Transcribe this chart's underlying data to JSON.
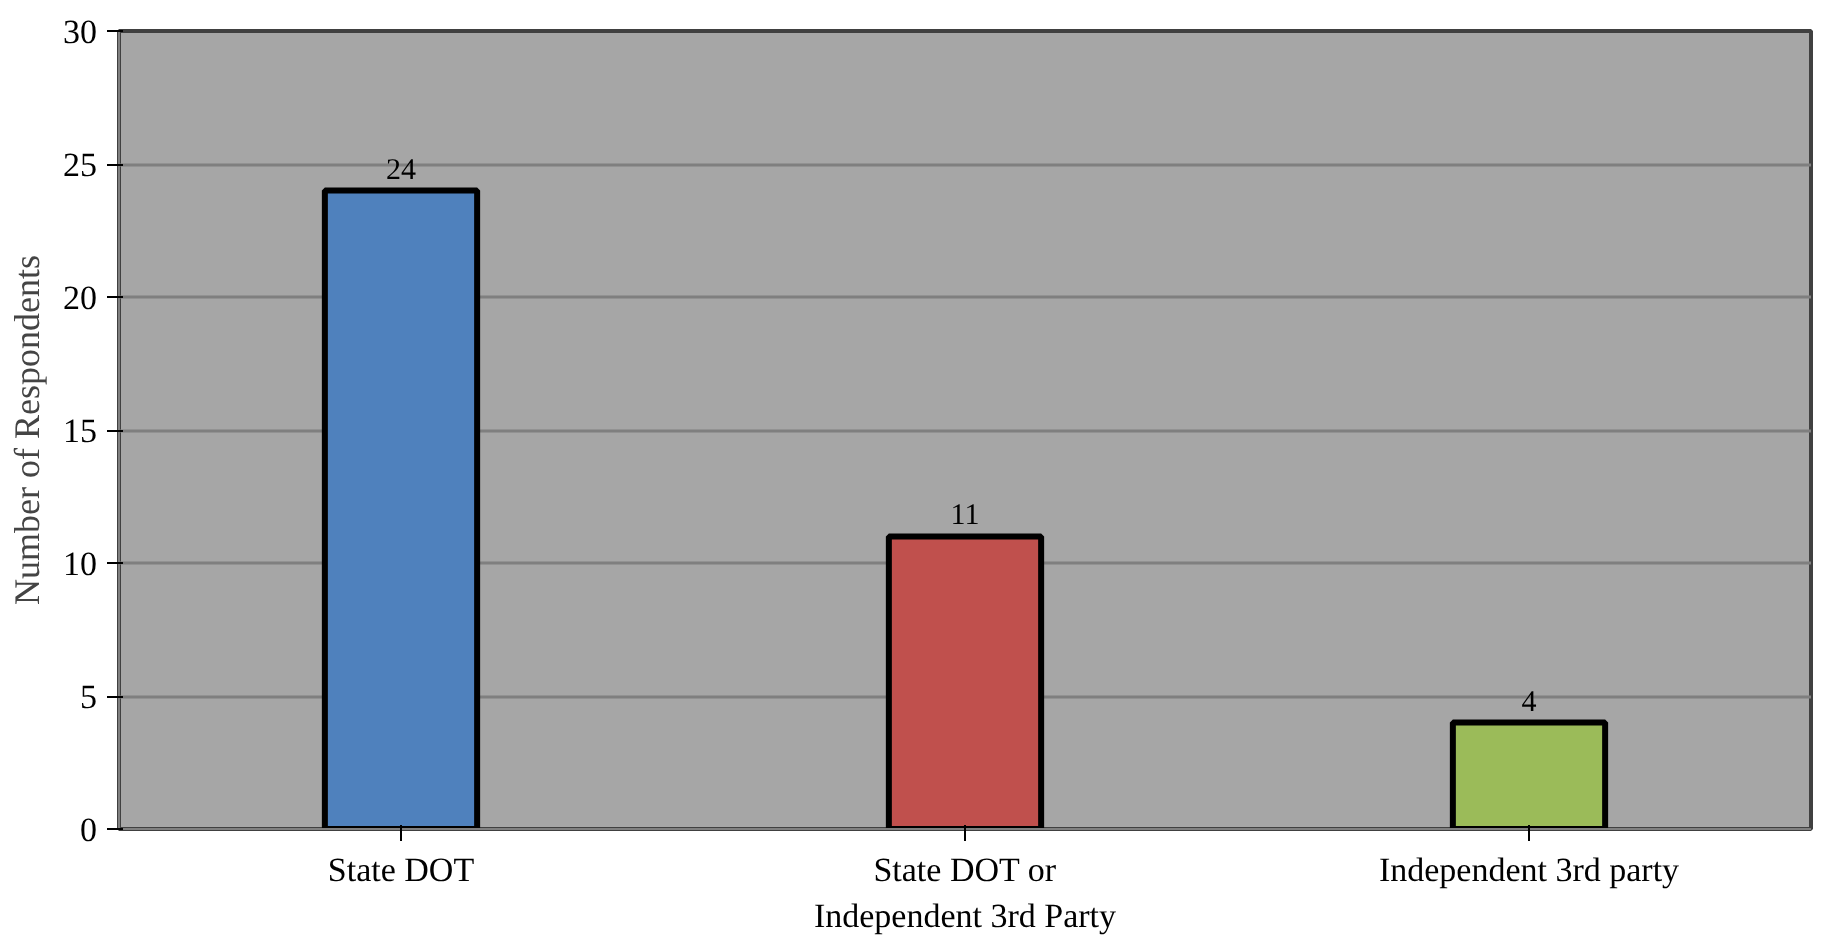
{
  "chart_data": {
    "type": "bar",
    "ylabel": "Number of Respondents",
    "categories": [
      "State DOT",
      "State DOT or Independent 3rd Party",
      "Independent 3rd party"
    ],
    "values": [
      24,
      11,
      4
    ],
    "colors": [
      "#4f81bd",
      "#c0504d",
      "#9bbb59"
    ],
    "ylim": [
      0,
      30
    ],
    "yticks": [
      0,
      5,
      10,
      15,
      20,
      25,
      30
    ],
    "grid": "y",
    "data_labels": true
  }
}
